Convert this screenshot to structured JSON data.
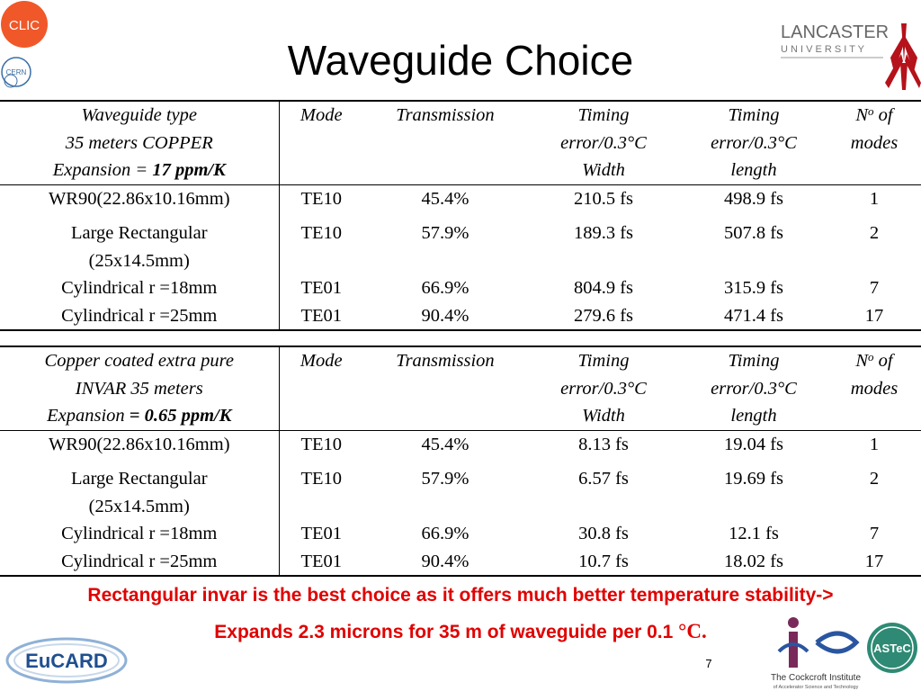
{
  "slide": {
    "title": "Waveguide Choice",
    "page_number": "7"
  },
  "logos": {
    "clic": "CLIC",
    "cern": "CERN",
    "lancaster_top": "LANCASTER",
    "lancaster_bottom": "U N I V E R S I T Y",
    "eucard": "EuCARD",
    "cockcroft_line1": "The Cockcroft Institute",
    "cockcroft_line2": "of Accelerator Science and Technology",
    "astec": "ASTeC"
  },
  "table_copper": {
    "header": {
      "type_line1": "Waveguide type",
      "type_line2": "35 meters COPPER",
      "type_line3_prefix": "Expansion = ",
      "type_line3_bold": "17 ppm/K",
      "mode": "Mode",
      "transmission": "Transmission",
      "timing_width_line1": "Timing",
      "timing_width_line2": "error/0.3°C",
      "timing_width_line3": "Width",
      "timing_length_line1": "Timing",
      "timing_length_line2": "error/0.3°C",
      "timing_length_line3": "length",
      "modes_n": "N",
      "modes_sup": "o",
      "modes_of": " of",
      "modes_line2": "modes"
    },
    "rows": [
      {
        "type_line1": "WR90(22.86x10.16mm)",
        "type_line2": "",
        "mode": "TE10",
        "transmission": "45.4%",
        "timing_width": "210.5 fs",
        "timing_length": "498.9 fs",
        "modes": "1"
      },
      {
        "type_line1": "Large Rectangular",
        "type_line2": "(25x14.5mm)",
        "mode": "TE10",
        "transmission": "57.9%",
        "timing_width": "189.3 fs",
        "timing_length": "507.8 fs",
        "modes": "2"
      },
      {
        "type_line1": "Cylindrical r =18mm",
        "type_line2": "",
        "mode": "TE01",
        "transmission": "66.9%",
        "timing_width": "804.9 fs",
        "timing_length": "315.9 fs",
        "modes": "7"
      },
      {
        "type_line1": "Cylindrical r =25mm",
        "type_line2": "",
        "mode": "TE01",
        "transmission": "90.4%",
        "timing_width": "279.6 fs",
        "timing_length": "471.4 fs",
        "modes": "17"
      }
    ]
  },
  "table_invar": {
    "header": {
      "type_line1": "Copper coated extra pure",
      "type_line2": "INVAR 35 meters",
      "type_line3_prefix": "Expansion ",
      "type_line3_bold": "= 0.65 ppm/K",
      "mode": "Mode",
      "transmission": "Transmission",
      "timing_width_line1": "Timing",
      "timing_width_line2": "error/0.3°C",
      "timing_width_line3": "Width",
      "timing_length_line1": "Timing",
      "timing_length_line2": "error/0.3°C",
      "timing_length_line3": "length",
      "modes_n": "N",
      "modes_sup": "o",
      "modes_of": " of",
      "modes_line2": "modes"
    },
    "rows": [
      {
        "type_line1": "WR90(22.86x10.16mm)",
        "type_line2": "",
        "mode": "TE10",
        "transmission": "45.4%",
        "timing_width": "8.13 fs",
        "timing_length": "19.04 fs",
        "modes": "1"
      },
      {
        "type_line1": "Large Rectangular",
        "type_line2": "(25x14.5mm)",
        "mode": "TE10",
        "transmission": "57.9%",
        "timing_width": "6.57 fs",
        "timing_length": "19.69 fs",
        "modes": "2"
      },
      {
        "type_line1": "Cylindrical r =18mm",
        "type_line2": "",
        "mode": "TE01",
        "transmission": "66.9%",
        "timing_width": "30.8 fs",
        "timing_length": "12.1 fs",
        "modes": "7"
      },
      {
        "type_line1": "Cylindrical r =25mm",
        "type_line2": "",
        "mode": "TE01",
        "transmission": "90.4%",
        "timing_width": "10.7 fs",
        "timing_length": "18.02 fs",
        "modes": "17"
      }
    ]
  },
  "conclusion": {
    "line1": "Rectangular invar is the best choice as it offers much better temperature stability->",
    "line2_prefix": "Expands 2.3 microns for 35 m of waveguide per 0.1 ",
    "line2_unit": "°C."
  },
  "colors": {
    "accent_red": "#e00000",
    "clic_orange": "#f0582a",
    "lancaster_red": "#b5121b",
    "cockcroft_purple": "#7a2a5a",
    "astec_green": "#2e8a74",
    "eucard_blue": "#1f4f8f"
  }
}
